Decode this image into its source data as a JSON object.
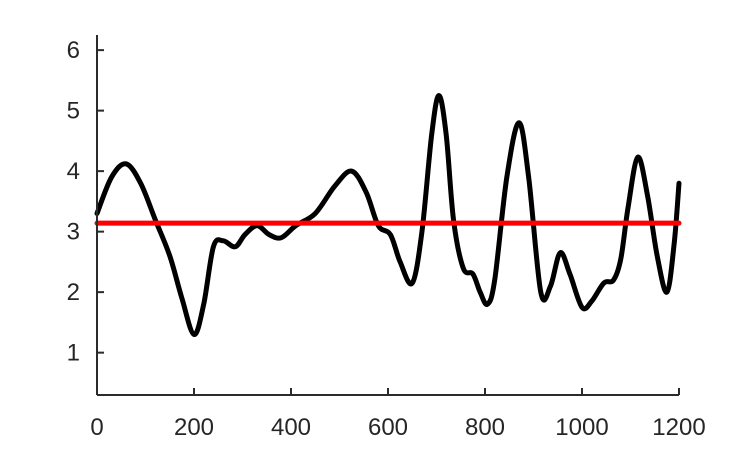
{
  "chart_data": {
    "type": "line",
    "title": "",
    "xlabel": "",
    "ylabel": "",
    "xlim": [
      0,
      1200
    ],
    "ylim": [
      0.3,
      6.25
    ],
    "xticks": [
      0,
      200,
      400,
      600,
      800,
      1000,
      1200
    ],
    "yticks": [
      1,
      2,
      3,
      4,
      5,
      6
    ],
    "grid": false,
    "legend": "none",
    "series": [
      {
        "color": "#000000",
        "style": "curve",
        "x": [
          0,
          30,
          60,
          90,
          120,
          150,
          175,
          200,
          220,
          240,
          260,
          285,
          305,
          330,
          355,
          380,
          410,
          450,
          490,
          525,
          555,
          580,
          605,
          625,
          650,
          670,
          690,
          705,
          720,
          735,
          755,
          775,
          790,
          805,
          820,
          845,
          870,
          890,
          915,
          935,
          955,
          975,
          1000,
          1020,
          1045,
          1065,
          1080,
          1095,
          1115,
          1135,
          1155,
          1175,
          1190,
          1200
        ],
        "y": [
          3.3,
          3.9,
          4.12,
          3.8,
          3.2,
          2.6,
          1.9,
          1.3,
          1.8,
          2.75,
          2.85,
          2.75,
          2.95,
          3.1,
          2.95,
          2.9,
          3.1,
          3.3,
          3.75,
          4.0,
          3.65,
          3.1,
          2.95,
          2.5,
          2.15,
          3.0,
          4.6,
          5.25,
          4.6,
          3.2,
          2.4,
          2.3,
          2.0,
          1.8,
          2.2,
          3.9,
          4.8,
          3.9,
          2.0,
          2.1,
          2.65,
          2.3,
          1.75,
          1.85,
          2.15,
          2.2,
          2.55,
          3.4,
          4.23,
          3.6,
          2.6,
          2.0,
          2.8,
          3.8
        ]
      },
      {
        "color": "#ff0000",
        "style": "line",
        "x": [
          0,
          1200
        ],
        "y": [
          3.14,
          3.14
        ]
      }
    ]
  }
}
